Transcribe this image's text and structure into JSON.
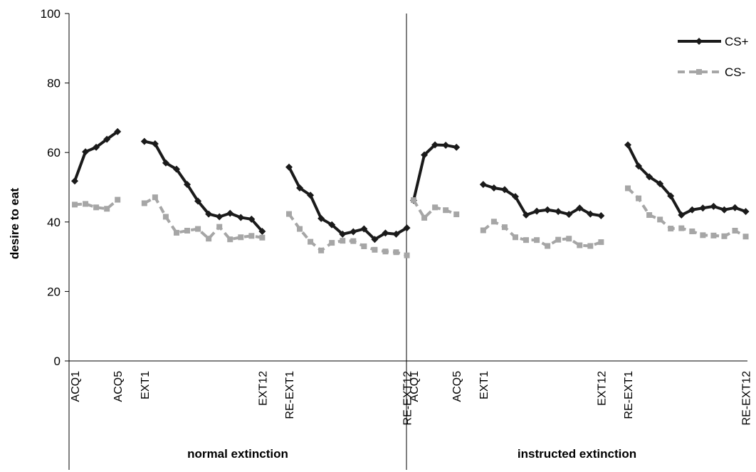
{
  "chart_data": {
    "type": "line",
    "title": "",
    "ylabel": "desire to eat",
    "xlabel": "",
    "ylim": [
      0,
      100
    ],
    "yticks": [
      0,
      20,
      40,
      60,
      80,
      100
    ],
    "grid": false,
    "legend_position": "top-right",
    "colors": {
      "CS+": "#1a1a1a",
      "CS-": "#a6a6a6"
    },
    "groups": [
      {
        "name": "normal extinction",
        "segments": [
          {
            "category_labels": [
              "ACQ1",
              "",
              "",
              "",
              "ACQ5"
            ],
            "series": [
              {
                "name": "CS+",
                "values": [
                  51.8,
                  60.2,
                  61.5,
                  63.8,
                  66
                ]
              },
              {
                "name": "CS-",
                "values": [
                  45,
                  45.2,
                  44.2,
                  43.8,
                  46.4
                ]
              }
            ]
          },
          {
            "category_labels": [
              "EXT1",
              "",
              "",
              "",
              "",
              "",
              "",
              "",
              "",
              "",
              "",
              "EXT12"
            ],
            "series": [
              {
                "name": "CS+",
                "values": [
                  63.2,
                  62.5,
                  57,
                  55.2,
                  50.8,
                  46,
                  42.3,
                  41.5,
                  42.5,
                  41.3,
                  40.8,
                  37.3
                ]
              },
              {
                "name": "CS-",
                "values": [
                  45.4,
                  47.1,
                  41.5,
                  36.9,
                  37.5,
                  38,
                  35.2,
                  38.6,
                  35,
                  35.6,
                  36,
                  35.5
                ]
              }
            ]
          },
          {
            "category_labels": [
              "RE-EXT1",
              "",
              "",
              "",
              "",
              "",
              "",
              "",
              "",
              "",
              "",
              "RE-EXT12"
            ],
            "series": [
              {
                "name": "CS+",
                "values": [
                  55.8,
                  49.8,
                  47.7,
                  41,
                  39.2,
                  36.5,
                  37.2,
                  38,
                  35,
                  36.8,
                  36.5,
                  38.3
                ]
              },
              {
                "name": "CS-",
                "values": [
                  42.3,
                  38,
                  34.3,
                  31.8,
                  34,
                  34.6,
                  34.5,
                  33,
                  32,
                  31.5,
                  31.3,
                  30.4
                ]
              }
            ]
          }
        ]
      },
      {
        "name": "instructed extinction",
        "segments": [
          {
            "category_labels": [
              "ACQ1",
              "",
              "",
              "",
              "ACQ5"
            ],
            "series": [
              {
                "name": "CS+",
                "values": [
                  46.2,
                  59.3,
                  62.2,
                  62.1,
                  61.5
                ]
              },
              {
                "name": "CS-",
                "values": [
                  46.3,
                  41.2,
                  44.2,
                  43.4,
                  42.2
                ]
              }
            ]
          },
          {
            "category_labels": [
              "EXT1",
              "",
              "",
              "",
              "",
              "",
              "",
              "",
              "",
              "",
              "",
              "EXT12"
            ],
            "series": [
              {
                "name": "CS+",
                "values": [
                  50.8,
                  49.8,
                  49.3,
                  47.3,
                  42,
                  43.1,
                  43.5,
                  43,
                  42.2,
                  44,
                  42.3,
                  41.8
                ]
              },
              {
                "name": "CS-",
                "values": [
                  37.6,
                  40.1,
                  38.5,
                  35.6,
                  34.8,
                  34.8,
                  33.1,
                  34.9,
                  35.2,
                  33.3,
                  33.1,
                  34.2
                ]
              }
            ]
          },
          {
            "category_labels": [
              "RE-EXT1",
              "",
              "",
              "",
              "",
              "",
              "",
              "",
              "",
              "",
              "",
              "RE-EXT12"
            ],
            "series": [
              {
                "name": "CS+",
                "values": [
                  62.2,
                  56.1,
                  53,
                  51,
                  47.5,
                  42,
                  43.5,
                  44,
                  44.5,
                  43.5,
                  44.1,
                  43
                ]
              },
              {
                "name": "CS-",
                "values": [
                  49.7,
                  46.8,
                  42,
                  40.7,
                  38.1,
                  38.2,
                  37.3,
                  36.2,
                  36.1,
                  35.9,
                  37.5,
                  35.8
                ]
              }
            ]
          }
        ]
      }
    ]
  }
}
